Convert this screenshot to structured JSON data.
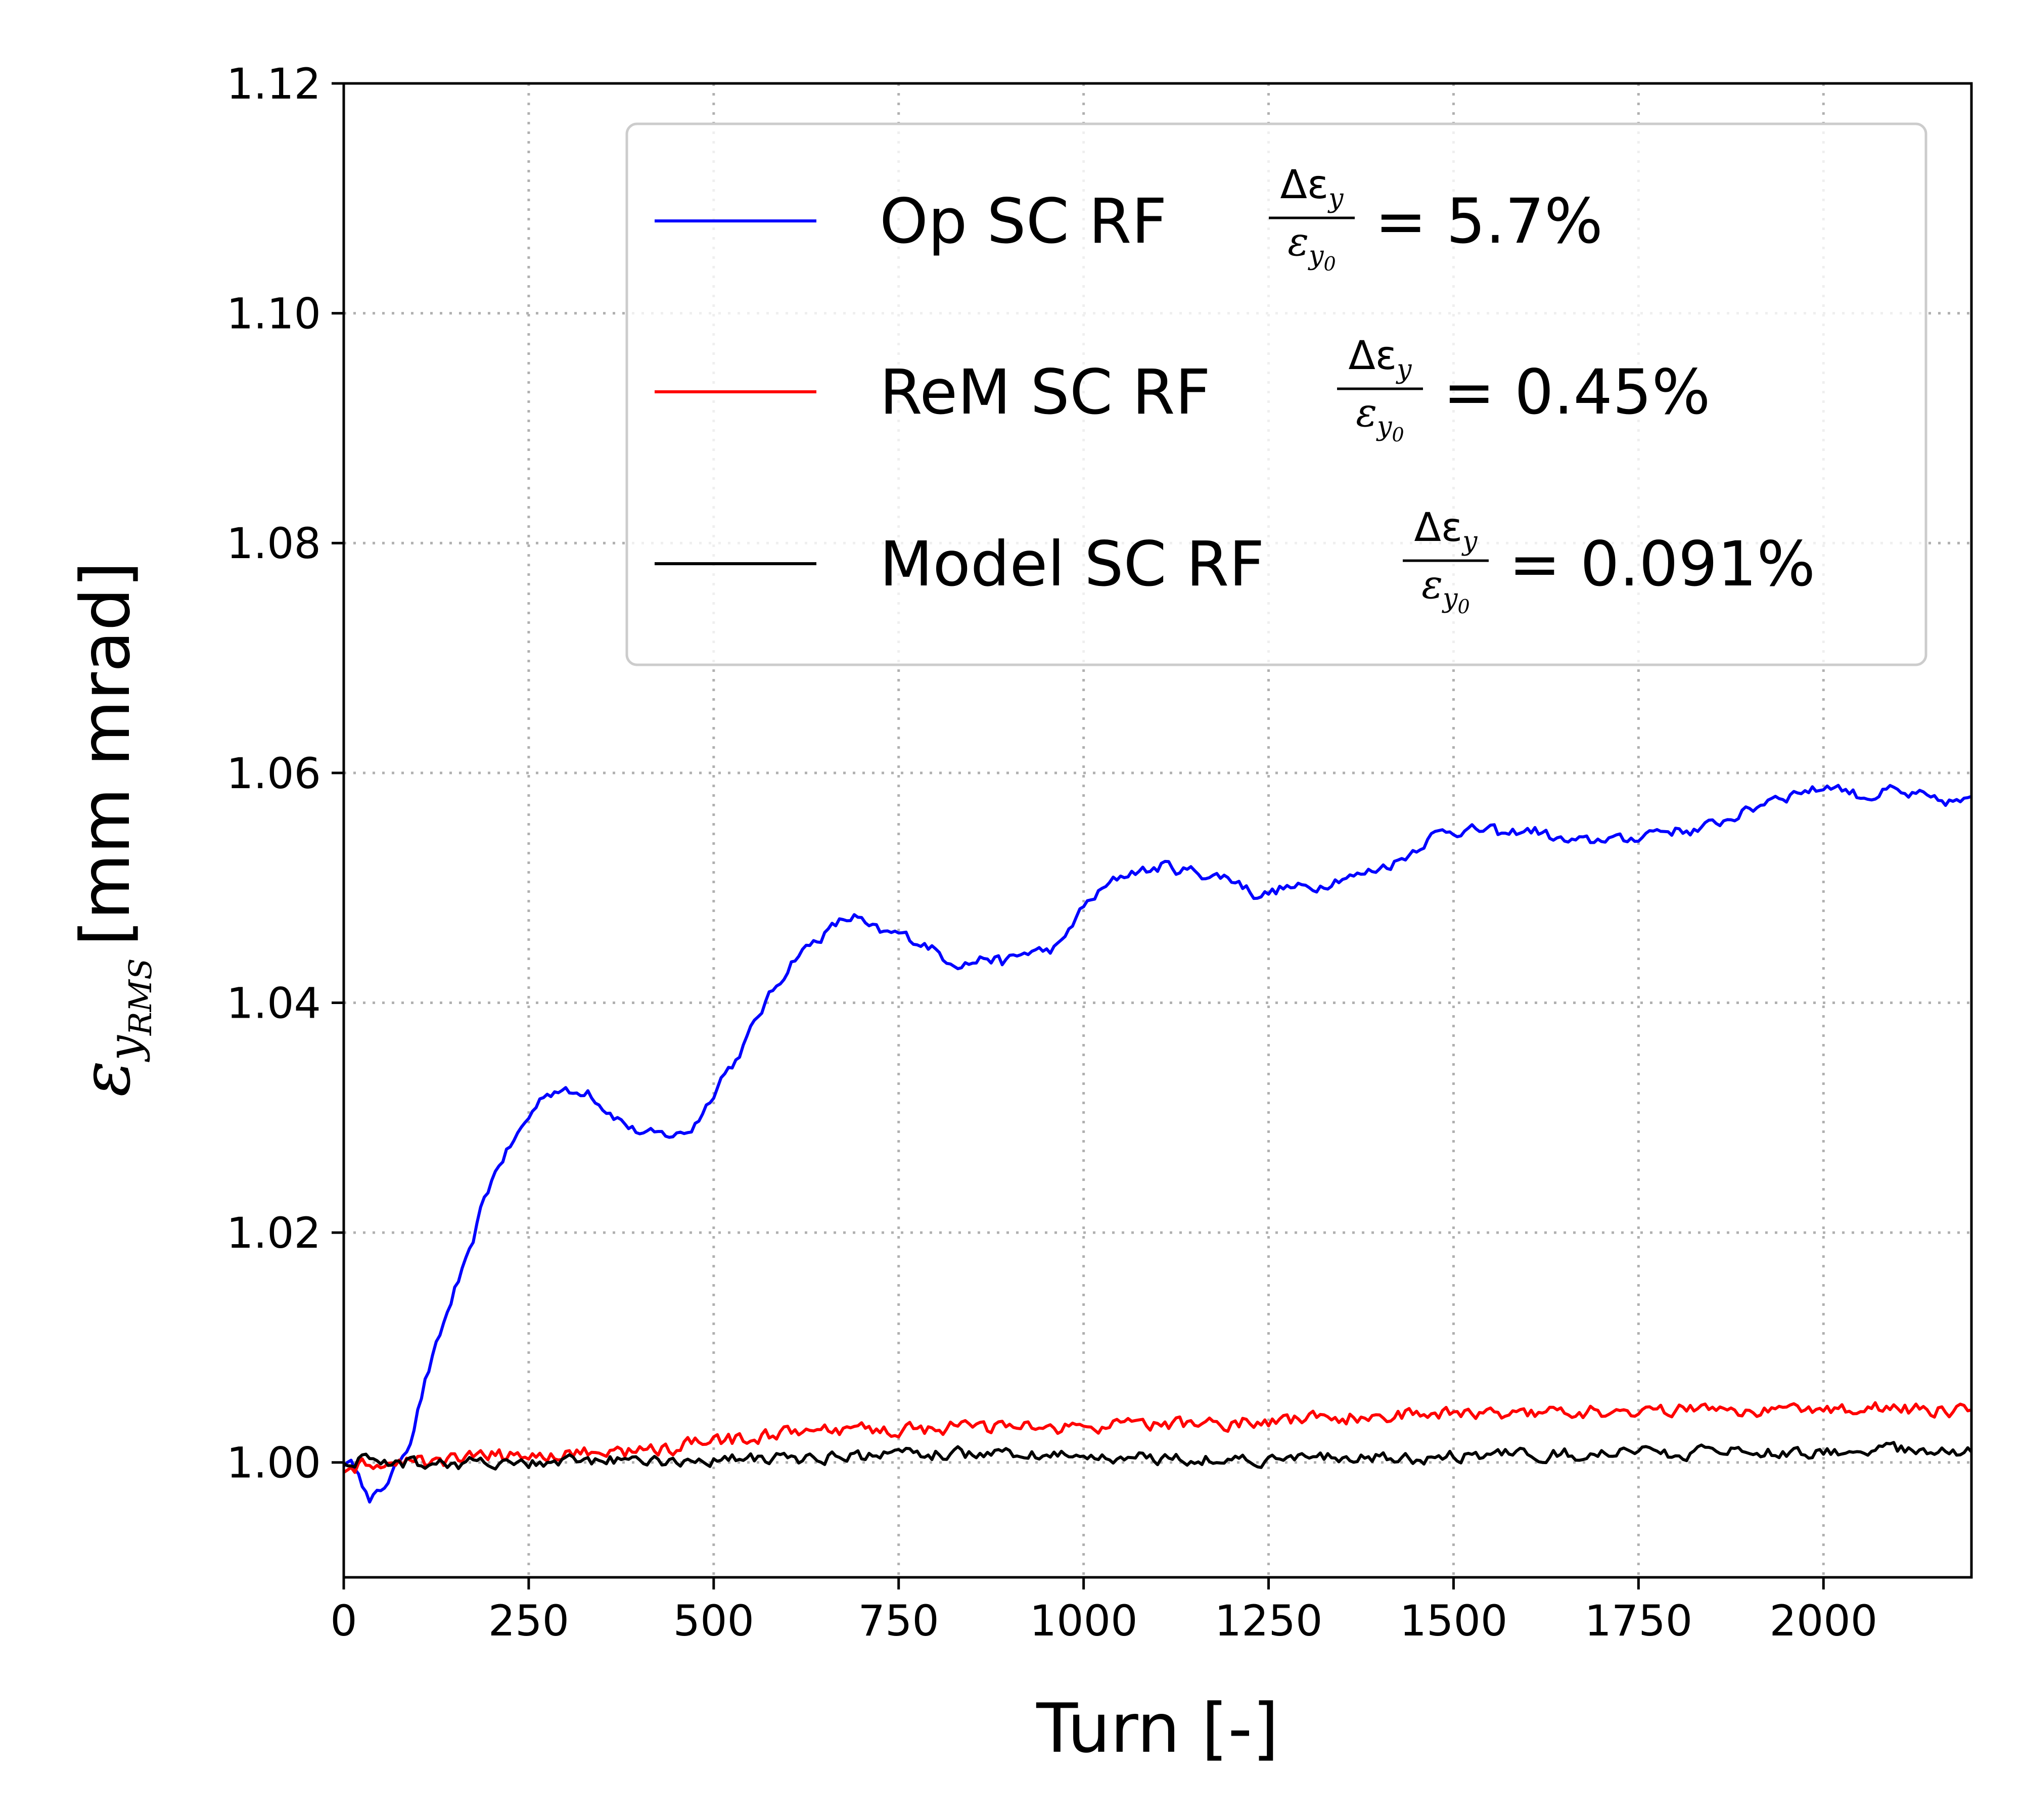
{
  "chart_data": {
    "type": "line",
    "xlabel": "Turn [-]",
    "ylabel": {
      "symbol": "ε",
      "subscript": "y",
      "sub_subscript": "RMS",
      "units": "[mm mrad]"
    },
    "xlim": [
      0,
      2200
    ],
    "ylim": [
      0.99,
      1.12
    ],
    "xticks": [
      0,
      250,
      500,
      750,
      1000,
      1250,
      1500,
      1750,
      2000
    ],
    "xtick_labels": [
      "0",
      "250",
      "500",
      "750",
      "1000",
      "1250",
      "1500",
      "1750",
      "2000"
    ],
    "yticks": [
      1.0,
      1.02,
      1.04,
      1.06,
      1.08,
      1.1,
      1.12
    ],
    "ytick_labels": [
      "1.00",
      "1.02",
      "1.04",
      "1.06",
      "1.08",
      "1.10",
      "1.12"
    ],
    "grid": true,
    "legend_position": "top-right",
    "legend_fraction": {
      "numerator": "Δε",
      "numerator_sub": "y",
      "denominator": "ε",
      "denominator_sub": "y",
      "denominator_subsub": "0"
    },
    "series": [
      {
        "name": "Op SC RF",
        "label_prefix": "Op SC RF",
        "label_value": "= 5.7%",
        "color": "#0000ff",
        "noise": 0.0007,
        "x": [
          0,
          20,
          35,
          50,
          70,
          90,
          110,
          130,
          150,
          170,
          190,
          210,
          230,
          250,
          270,
          290,
          310,
          330,
          350,
          370,
          390,
          410,
          430,
          450,
          470,
          490,
          510,
          530,
          550,
          570,
          590,
          610,
          630,
          650,
          670,
          690,
          710,
          730,
          750,
          770,
          790,
          810,
          830,
          850,
          870,
          890,
          910,
          930,
          950,
          970,
          990,
          1010,
          1030,
          1050,
          1070,
          1090,
          1110,
          1130,
          1150,
          1170,
          1190,
          1210,
          1230,
          1250,
          1270,
          1290,
          1310,
          1330,
          1350,
          1370,
          1390,
          1410,
          1430,
          1450,
          1470,
          1490,
          1510,
          1530,
          1550,
          1570,
          1590,
          1610,
          1630,
          1650,
          1670,
          1690,
          1710,
          1730,
          1750,
          1770,
          1790,
          1810,
          1830,
          1850,
          1870,
          1890,
          1910,
          1930,
          1950,
          1970,
          1990,
          2010,
          2030,
          2050,
          2070,
          2090,
          2110,
          2130,
          2150,
          2170,
          2200
        ],
        "y": [
          1.0,
          0.9995,
          0.9965,
          0.9975,
          0.9995,
          1.002,
          1.007,
          1.011,
          1.015,
          1.018,
          1.023,
          1.026,
          1.028,
          1.03,
          1.032,
          1.0325,
          1.032,
          1.0325,
          1.031,
          1.03,
          1.029,
          1.0285,
          1.0285,
          1.0285,
          1.029,
          1.031,
          1.0335,
          1.035,
          1.0375,
          1.04,
          1.042,
          1.044,
          1.045,
          1.046,
          1.047,
          1.0475,
          1.0465,
          1.046,
          1.046,
          1.0455,
          1.045,
          1.044,
          1.0435,
          1.0435,
          1.044,
          1.0435,
          1.044,
          1.0445,
          1.0445,
          1.045,
          1.0475,
          1.049,
          1.05,
          1.051,
          1.0515,
          1.0515,
          1.052,
          1.0515,
          1.0515,
          1.051,
          1.051,
          1.0505,
          1.0495,
          1.0495,
          1.05,
          1.05,
          1.05,
          1.0505,
          1.051,
          1.051,
          1.0515,
          1.052,
          1.0525,
          1.0535,
          1.0545,
          1.055,
          1.055,
          1.055,
          1.055,
          1.0545,
          1.055,
          1.055,
          1.0545,
          1.054,
          1.054,
          1.054,
          1.0545,
          1.054,
          1.0545,
          1.055,
          1.055,
          1.055,
          1.055,
          1.0555,
          1.056,
          1.0565,
          1.057,
          1.058,
          1.058,
          1.0585,
          1.0585,
          1.059,
          1.0585,
          1.058,
          1.058,
          1.0585,
          1.058,
          1.058,
          1.0575,
          1.0575,
          1.0575
        ]
      },
      {
        "name": "ReM SC RF",
        "label_prefix": "ReM SC RF",
        "label_value": "= 0.45%",
        "color": "#ff0000",
        "noise": 0.0009,
        "x": [
          0,
          200,
          400,
          600,
          800,
          1000,
          1200,
          1400,
          1600,
          1800,
          2000,
          2200
        ],
        "y": [
          0.9995,
          1.0005,
          1.001,
          1.0025,
          1.003,
          1.003,
          1.0035,
          1.004,
          1.0045,
          1.0045,
          1.0048,
          1.0045
        ]
      },
      {
        "name": "Model SC RF",
        "label_prefix": "Model SC RF",
        "label_value": "= 0.091%",
        "color": "#000000",
        "noise": 0.0008,
        "x": [
          0,
          200,
          400,
          600,
          800,
          1000,
          1200,
          1400,
          1600,
          1800,
          2000,
          2200
        ],
        "y": [
          1.0002,
          0.9998,
          1.0002,
          1.0003,
          1.0008,
          1.0005,
          1.0003,
          1.0003,
          1.0007,
          1.0008,
          1.001,
          1.001
        ]
      }
    ]
  }
}
